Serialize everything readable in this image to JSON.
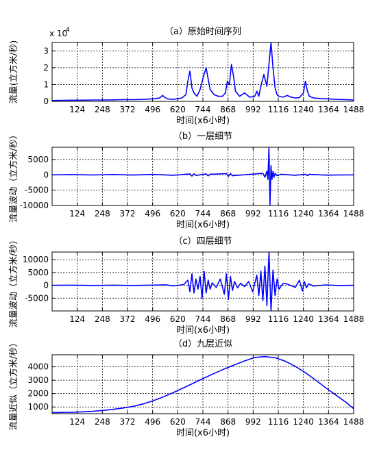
{
  "chart_data": [
    {
      "type": "line",
      "title": "（a）原始时间序列",
      "xlabel": "时间(x6小时)",
      "ylabel": "流量(立方米/秒)",
      "exponent_label": "x 10",
      "exponent_power": "4",
      "xlim": [
        0,
        1488
      ],
      "ylim": [
        0,
        3.5
      ],
      "xticks": [
        124,
        248,
        372,
        496,
        620,
        744,
        868,
        992,
        1116,
        1240,
        1364,
        1488
      ],
      "xtick_labels": [
        "124",
        "248",
        "372",
        "496",
        "620",
        "744",
        "868",
        "992",
        "1116",
        "1240",
        "1364",
        "1488"
      ],
      "yticks": [
        0,
        1,
        2,
        3
      ],
      "ytick_labels": [
        "0",
        "1",
        "2",
        "3"
      ],
      "grid": true,
      "color": "#0000ff",
      "series": [
        {
          "x": [
            0,
            50,
            100,
            150,
            200,
            250,
            300,
            350,
            400,
            450,
            500,
            530,
            545,
            555,
            570,
            600,
            640,
            660,
            670,
            680,
            690,
            700,
            715,
            730,
            745,
            760,
            780,
            800,
            820,
            840,
            855,
            865,
            875,
            885,
            895,
            905,
            925,
            950,
            975,
            1000,
            1010,
            1020,
            1030,
            1045,
            1060,
            1070,
            1080,
            1090,
            1100,
            1110,
            1120,
            1140,
            1160,
            1180,
            1200,
            1220,
            1240,
            1250,
            1260,
            1270,
            1290,
            1320,
            1360,
            1400,
            1450,
            1488
          ],
          "y": [
            0.05,
            0.06,
            0.07,
            0.07,
            0.08,
            0.08,
            0.09,
            0.1,
            0.1,
            0.12,
            0.15,
            0.2,
            0.35,
            0.25,
            0.15,
            0.12,
            0.2,
            0.4,
            1.2,
            1.8,
            0.8,
            0.5,
            0.3,
            0.7,
            1.4,
            2.0,
            0.7,
            0.4,
            0.3,
            0.3,
            0.5,
            1.2,
            1.0,
            2.2,
            1.5,
            0.6,
            0.3,
            0.5,
            0.25,
            0.3,
            0.6,
            0.3,
            0.9,
            1.6,
            0.9,
            2.2,
            3.5,
            2.0,
            0.8,
            0.4,
            0.3,
            0.25,
            0.35,
            0.25,
            0.2,
            0.22,
            0.5,
            1.2,
            0.6,
            0.3,
            0.2,
            0.17,
            0.15,
            0.12,
            0.1,
            0.08
          ]
        }
      ]
    },
    {
      "type": "line",
      "title": "（b）一层细节",
      "xlabel": "时间(x6小时)",
      "ylabel": "流量波动（立方米/秒）",
      "xlim": [
        0,
        1488
      ],
      "ylim": [
        -10000,
        9000
      ],
      "xticks": [
        124,
        248,
        372,
        496,
        620,
        744,
        868,
        992,
        1116,
        1240,
        1364,
        1488
      ],
      "xtick_labels": [
        "124",
        "248",
        "372",
        "496",
        "620",
        "744",
        "868",
        "992",
        "1116",
        "1240",
        "1364",
        "1488"
      ],
      "yticks": [
        -10000,
        -5000,
        0,
        5000
      ],
      "ytick_labels": [
        "-10000",
        "-5000",
        "0",
        "5000"
      ],
      "grid": true,
      "color": "#0000ff",
      "series": [
        {
          "x": [
            0,
            100,
            200,
            300,
            400,
            500,
            600,
            680,
            690,
            700,
            710,
            760,
            770,
            780,
            860,
            870,
            880,
            890,
            1040,
            1050,
            1060,
            1065,
            1070,
            1075,
            1080,
            1085,
            1090,
            1095,
            1100,
            1110,
            1130,
            1200,
            1250,
            1260,
            1270,
            1350,
            1488
          ],
          "y": [
            0,
            80,
            -60,
            100,
            -80,
            120,
            -150,
            300,
            -400,
            350,
            -200,
            300,
            -350,
            200,
            400,
            -500,
            450,
            -300,
            500,
            -800,
            1200,
            -1500,
            9000,
            -10000,
            3000,
            -1500,
            1200,
            -800,
            500,
            -300,
            200,
            -150,
            200,
            -250,
            150,
            -100,
            0
          ]
        }
      ]
    },
    {
      "type": "line",
      "title": "（c）四层细节",
      "xlabel": "时间(x6小时)",
      "ylabel": "流量波动（立方米/秒）",
      "xlim": [
        0,
        1488
      ],
      "ylim": [
        -10000,
        13000
      ],
      "xticks": [
        124,
        248,
        372,
        496,
        620,
        744,
        868,
        992,
        1116,
        1240,
        1364,
        1488
      ],
      "xtick_labels": [
        "124",
        "248",
        "372",
        "496",
        "620",
        "744",
        "868",
        "992",
        "1116",
        "1240",
        "1364",
        "1488"
      ],
      "yticks": [
        -5000,
        0,
        5000,
        10000
      ],
      "ytick_labels": [
        "-5000",
        "0",
        "5000",
        "10000"
      ],
      "grid": true,
      "color": "#0000ff",
      "series": [
        {
          "x": [
            0,
            100,
            200,
            300,
            400,
            500,
            560,
            600,
            650,
            670,
            680,
            690,
            700,
            710,
            720,
            730,
            740,
            750,
            760,
            770,
            780,
            790,
            810,
            830,
            850,
            860,
            870,
            880,
            890,
            900,
            915,
            930,
            950,
            970,
            990,
            1010,
            1020,
            1030,
            1040,
            1050,
            1060,
            1070,
            1080,
            1090,
            1100,
            1110,
            1120,
            1140,
            1160,
            1200,
            1220,
            1235,
            1245,
            1255,
            1265,
            1290,
            1350,
            1420,
            1488
          ],
          "y": [
            0,
            50,
            -40,
            60,
            -50,
            80,
            200,
            -200,
            300,
            2000,
            -2500,
            4500,
            -3000,
            2500,
            -1500,
            3500,
            -5000,
            5500,
            -3000,
            2000,
            -1500,
            1000,
            -800,
            2500,
            -3500,
            4500,
            -5500,
            3500,
            -2000,
            1500,
            -1000,
            800,
            -500,
            1500,
            -2500,
            4000,
            -4000,
            5500,
            -6000,
            7500,
            -8000,
            13000,
            -10000,
            6000,
            -4000,
            2500,
            -1500,
            800,
            500,
            -800,
            2000,
            -2200,
            1500,
            -1000,
            600,
            -300,
            150,
            -80,
            0
          ]
        }
      ]
    },
    {
      "type": "line",
      "title": "（d）九层近似",
      "xlabel": "时间(x6小时)",
      "ylabel": "流量近似（立方米/秒）",
      "xlim": [
        0,
        1488
      ],
      "ylim": [
        500,
        4900
      ],
      "xticks": [
        124,
        248,
        372,
        496,
        620,
        744,
        868,
        992,
        1116,
        1240,
        1364,
        1488
      ],
      "xtick_labels": [
        "124",
        "248",
        "372",
        "496",
        "620",
        "744",
        "868",
        "992",
        "1116",
        "1240",
        "1364",
        "1488"
      ],
      "yticks": [
        1000,
        2000,
        3000,
        4000
      ],
      "ytick_labels": [
        "1000",
        "2000",
        "3000",
        "4000"
      ],
      "grid": true,
      "color": "#0000ff",
      "series": [
        {
          "x": [
            0,
            50,
            100,
            150,
            200,
            250,
            300,
            350,
            400,
            450,
            500,
            550,
            600,
            650,
            700,
            750,
            800,
            850,
            900,
            950,
            1000,
            1050,
            1100,
            1150,
            1200,
            1250,
            1300,
            1350,
            1400,
            1450,
            1488
          ],
          "y": [
            580,
            590,
            610,
            640,
            680,
            740,
            820,
            920,
            1050,
            1230,
            1470,
            1760,
            2090,
            2440,
            2800,
            3160,
            3510,
            3840,
            4150,
            4440,
            4700,
            4760,
            4680,
            4420,
            4040,
            3560,
            3010,
            2440,
            1890,
            1350,
            870
          ]
        }
      ]
    }
  ]
}
